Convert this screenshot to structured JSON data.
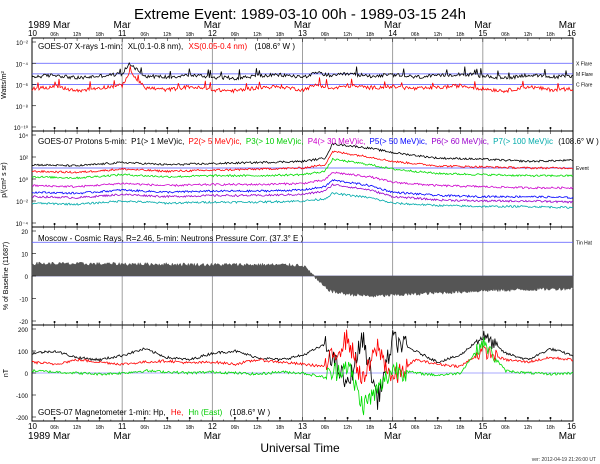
{
  "chart_data": {
    "type": "line",
    "title": "Extreme Event: 1989-03-10 00h - 1989-03-15 24h",
    "xlabel": "Universal Time",
    "version": "ver: 2012-04-19 21:26:00 UT",
    "x_range_hours": [
      0,
      144
    ],
    "day_ticks": [
      {
        "label": "10",
        "hour": 0
      },
      {
        "label": "11",
        "hour": 24
      },
      {
        "label": "12",
        "hour": 48
      },
      {
        "label": "13",
        "hour": 72
      },
      {
        "label": "14",
        "hour": 96
      },
      {
        "label": "15",
        "hour": 120
      },
      {
        "label": "16",
        "hour": 144
      }
    ],
    "month_labels": [
      {
        "text": "1989 Mar",
        "hour": 0
      },
      {
        "text": "Mar",
        "hour": 24
      },
      {
        "text": "Mar",
        "hour": 48
      },
      {
        "text": "Mar",
        "hour": 72
      },
      {
        "text": "Mar",
        "hour": 96
      },
      {
        "text": "Mar",
        "hour": 120
      },
      {
        "text": "Mar",
        "hour": 144
      }
    ],
    "hour_tick_labels": [
      "06h",
      "12h",
      "18h"
    ],
    "colors": {
      "xl": "#000000",
      "xs": "#ff0000",
      "p1": "#000000",
      "p2": "#ff0000",
      "p3": "#00dd00",
      "p4": "#cc00cc",
      "p5": "#0000ff",
      "p6": "#9900cc",
      "p7": "#00aaaa",
      "cosmic": "#555555",
      "hp": "#000000",
      "he": "#ff0000",
      "hn": "#00dd00",
      "grid": "#888888",
      "thresholds": "#5555ff"
    },
    "panels": [
      {
        "id": "xray",
        "label_prefix": "GOES-07 X-rays  1-min:",
        "label_series_1": "XL(0.1-0.8 nm),",
        "label_series_2": "XS(0.05-0.4 nm)",
        "label_suffix": "(108.6° W )",
        "ylabel": "Watts/m²",
        "y_scale": "log",
        "ylim_exp": [
          -10,
          -2
        ],
        "y_tick_labels": [
          "10⁻²",
          "10⁻⁴",
          "10⁻⁶",
          "10⁻⁸",
          "10⁻¹⁰"
        ],
        "thresholds": [
          {
            "name": "X Flare",
            "value_exp": -4
          },
          {
            "name": "M Flare",
            "value_exp": -5
          },
          {
            "name": "C Flare",
            "value_exp": -6
          }
        ],
        "series": [
          {
            "name": "XL",
            "color_key": "xl",
            "x": [
              0,
              6,
              12,
              18,
              24,
              26,
              30,
              36,
              42,
              48,
              54,
              60,
              66,
              72,
              76,
              80,
              84,
              90,
              96,
              102,
              108,
              114,
              120,
              126,
              132,
              138,
              144
            ],
            "y_exp": [
              -5.3,
              -5.1,
              -5.4,
              -5.2,
              -5.0,
              -4.0,
              -5.2,
              -5.3,
              -5.1,
              -5.3,
              -5.4,
              -5.2,
              -5.1,
              -5.3,
              -4.9,
              -5.2,
              -5.0,
              -5.2,
              -5.1,
              -5.3,
              -5.2,
              -5.0,
              -5.2,
              -5.4,
              -5.1,
              -5.3,
              -5.2
            ]
          },
          {
            "name": "XS",
            "color_key": "xs",
            "x": [
              0,
              6,
              12,
              18,
              24,
              26,
              30,
              36,
              42,
              48,
              54,
              60,
              66,
              72,
              76,
              80,
              84,
              90,
              96,
              102,
              108,
              114,
              120,
              126,
              132,
              138,
              144
            ],
            "y_exp": [
              -6.4,
              -6.2,
              -6.6,
              -6.3,
              -6.1,
              -4.8,
              -6.3,
              -6.5,
              -6.2,
              -6.5,
              -6.6,
              -6.3,
              -6.2,
              -6.5,
              -6.0,
              -6.4,
              -6.1,
              -6.3,
              -6.2,
              -6.4,
              -6.3,
              -6.1,
              -6.4,
              -6.6,
              -6.2,
              -6.5,
              -6.4
            ]
          }
        ]
      },
      {
        "id": "protons",
        "label_prefix": "GOES-07  Protons 5-min:",
        "label_series": [
          "P1(> 1 MeV)ic,",
          "P2(> 5 MeV)ic,",
          "P3(> 10 MeV)ic,",
          "P4(> 30 MeV)ic,",
          "P5(> 50 MeV)ic,",
          "P6(> 60 MeV)ic,",
          "P7(> 100 MeV)ic"
        ],
        "label_suffix": "(108.6° W )",
        "ylabel": "p/(cm² s sr)",
        "y_scale": "log",
        "ylim_exp": [
          -4,
          4
        ],
        "y_tick_labels": [
          "10⁴",
          "10²",
          "10⁰",
          "10⁻²",
          "10⁻⁴"
        ],
        "thresholds": [
          {
            "name": "Event",
            "value_exp": 1
          }
        ],
        "series": [
          {
            "name": "P1",
            "color_key": "p1",
            "x": [
              0,
              12,
              24,
              36,
              48,
              60,
              72,
              78,
              80,
              90,
              96,
              108,
              120,
              132,
              144
            ],
            "y_exp": [
              1.3,
              1.2,
              1.5,
              1.3,
              1.4,
              1.5,
              1.6,
              1.9,
              3.2,
              2.8,
              2.4,
              1.9,
              1.8,
              1.6,
              1.7
            ]
          },
          {
            "name": "P2",
            "color_key": "p2",
            "x": [
              0,
              12,
              24,
              36,
              48,
              60,
              72,
              78,
              80,
              90,
              96,
              108,
              120,
              132,
              144
            ],
            "y_exp": [
              0.7,
              0.6,
              0.9,
              0.7,
              0.8,
              0.9,
              1.0,
              1.3,
              2.5,
              2.0,
              1.6,
              1.2,
              1.1,
              1.0,
              1.0
            ]
          },
          {
            "name": "P3",
            "color_key": "p3",
            "x": [
              0,
              12,
              24,
              36,
              48,
              60,
              72,
              78,
              80,
              90,
              96,
              108,
              120,
              132,
              144
            ],
            "y_exp": [
              0.2,
              0.1,
              0.4,
              0.2,
              0.3,
              0.3,
              0.4,
              0.7,
              1.8,
              1.3,
              0.9,
              0.5,
              0.4,
              0.3,
              0.3
            ]
          },
          {
            "name": "P4",
            "color_key": "p4",
            "x": [
              0,
              12,
              24,
              36,
              48,
              60,
              72,
              78,
              80,
              90,
              96,
              108,
              120,
              132,
              144
            ],
            "y_exp": [
              -0.6,
              -0.7,
              -0.4,
              -0.6,
              -0.5,
              -0.5,
              -0.4,
              -0.1,
              0.6,
              0.2,
              -0.3,
              -0.6,
              -0.7,
              -0.8,
              -0.8
            ]
          },
          {
            "name": "P5",
            "color_key": "p5",
            "x": [
              0,
              12,
              24,
              36,
              48,
              60,
              72,
              78,
              80,
              90,
              96,
              108,
              120,
              132,
              144
            ],
            "y_exp": [
              -1.2,
              -1.3,
              -1.0,
              -1.2,
              -1.1,
              -1.1,
              -1.0,
              -0.7,
              -0.1,
              -0.6,
              -1.2,
              -1.5,
              -1.6,
              -1.6,
              -1.7
            ]
          },
          {
            "name": "P6",
            "color_key": "p6",
            "x": [
              0,
              12,
              24,
              36,
              48,
              60,
              72,
              78,
              80,
              90,
              96,
              108,
              120,
              132,
              144
            ],
            "y_exp": [
              -1.6,
              -1.7,
              -1.4,
              -1.6,
              -1.5,
              -1.5,
              -1.4,
              -1.1,
              -0.5,
              -1.0,
              -1.6,
              -1.9,
              -2.0,
              -2.0,
              -2.1
            ]
          },
          {
            "name": "P7",
            "color_key": "p7",
            "x": [
              0,
              12,
              24,
              36,
              48,
              60,
              72,
              78,
              80,
              90,
              96,
              108,
              120,
              132,
              144
            ],
            "y_exp": [
              -2.2,
              -2.3,
              -2.0,
              -2.2,
              -2.1,
              -2.1,
              -2.0,
              -1.8,
              -1.3,
              -1.7,
              -2.2,
              -2.4,
              -2.5,
              -2.5,
              -2.6
            ]
          }
        ]
      },
      {
        "id": "cosmic",
        "label": "Moscow - Cosmic Rays, R=2.46,  5-min: Neutrons Pressure Corr.  (37.3° E )",
        "ylabel": "% of Baseline (11687)",
        "y_scale": "linear",
        "ylim": [
          -20,
          20
        ],
        "y_ticks": [
          20,
          10,
          0,
          -10,
          -20
        ],
        "thresholds": [
          {
            "name": "Tin Hat",
            "value": 15
          }
        ],
        "series": [
          {
            "name": "Neutrons",
            "color_key": "cosmic",
            "x": [
              0,
              12,
              24,
              36,
              48,
              60,
              72,
              74,
              76,
              78,
              80,
              84,
              90,
              96,
              108,
              120,
              132,
              144
            ],
            "y": [
              5.5,
              5.4,
              5.3,
              5.2,
              5.0,
              5.0,
              4.8,
              2.0,
              -2.0,
              -5.0,
              -7.0,
              -8.0,
              -9.0,
              -8.5,
              -7.5,
              -6.5,
              -6.0,
              -5.5
            ]
          }
        ]
      },
      {
        "id": "magnetometer",
        "label_prefix": "GOES-07 Magnetometer  1-min: Hp,",
        "label_series_2": "He,",
        "label_series_3": "Hn (East)",
        "label_suffix": "(108.6° W )",
        "ylabel": "nT",
        "y_scale": "linear",
        "ylim": [
          -200,
          200
        ],
        "y_ticks": [
          200,
          100,
          0,
          -100,
          -200
        ],
        "series": [
          {
            "name": "Hp",
            "color_key": "hp",
            "x": [
              0,
              6,
              12,
              18,
              24,
              30,
              36,
              42,
              48,
              54,
              60,
              66,
              72,
              78,
              84,
              88,
              92,
              96,
              102,
              108,
              114,
              120,
              126,
              132,
              138,
              144
            ],
            "y": [
              90,
              100,
              70,
              60,
              80,
              110,
              70,
              60,
              90,
              100,
              70,
              60,
              80,
              130,
              -60,
              160,
              -120,
              150,
              100,
              50,
              80,
              170,
              90,
              60,
              110,
              80
            ]
          },
          {
            "name": "He",
            "color_key": "he",
            "x": [
              0,
              6,
              12,
              18,
              24,
              30,
              36,
              42,
              48,
              54,
              60,
              66,
              72,
              78,
              84,
              88,
              92,
              96,
              102,
              108,
              114,
              120,
              126,
              132,
              138,
              144
            ],
            "y": [
              50,
              40,
              60,
              50,
              40,
              50,
              55,
              45,
              50,
              40,
              60,
              50,
              40,
              30,
              160,
              -40,
              120,
              -30,
              60,
              40,
              30,
              100,
              60,
              50,
              70,
              60
            ]
          },
          {
            "name": "Hn",
            "color_key": "hn",
            "x": [
              0,
              6,
              12,
              18,
              24,
              30,
              36,
              42,
              48,
              54,
              60,
              66,
              72,
              78,
              84,
              88,
              92,
              96,
              102,
              108,
              114,
              120,
              126,
              132,
              138,
              144
            ],
            "y": [
              10,
              5,
              0,
              -5,
              0,
              10,
              5,
              0,
              5,
              0,
              -5,
              5,
              0,
              -20,
              40,
              -150,
              -80,
              20,
              0,
              -10,
              0,
              140,
              10,
              0,
              -5,
              0
            ]
          }
        ]
      }
    ]
  }
}
